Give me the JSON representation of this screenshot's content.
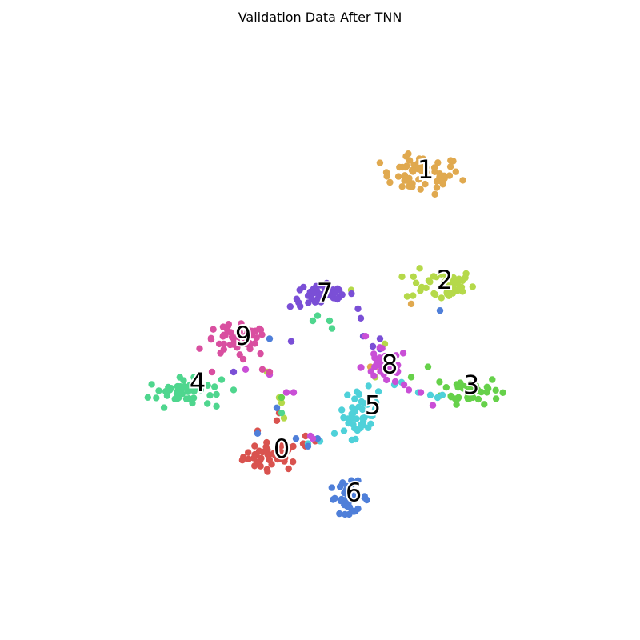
{
  "chart_data": {
    "type": "scatter",
    "title": "Validation Data After TNN",
    "xlabel": "",
    "ylabel": "",
    "axes_visible": false,
    "grid": false,
    "legend": "none",
    "xlim": [
      0,
      100
    ],
    "ylim": [
      0,
      100
    ],
    "clusters": [
      {
        "label": "0",
        "color": "#d9534f",
        "label_x": 42.0,
        "label_y": 27.5,
        "cx": 40.0,
        "cy": 26.0,
        "sx": 4.0,
        "sy": 1.8,
        "n": 42,
        "stray": [
          [
            37.0,
            31.0
          ],
          [
            41.5,
            34.5
          ],
          [
            41.0,
            33.0
          ],
          [
            47.0,
            28.0
          ],
          [
            49.0,
            29.0
          ],
          [
            46.5,
            28.5
          ],
          [
            47.0,
            30.0
          ]
        ]
      },
      {
        "label": "1",
        "color": "#e0a94f",
        "label_x": 72.0,
        "label_y": 82.0,
        "cx": 71.0,
        "cy": 81.0,
        "sx": 5.5,
        "sy": 2.5,
        "n": 55,
        "stray": [
          [
            60.5,
            43.5
          ],
          [
            61.5,
            43.5
          ],
          [
            69.0,
            55.8
          ]
        ]
      },
      {
        "label": "2",
        "color": "#b5d94a",
        "label_x": 76.0,
        "label_y": 60.5,
        "cx": 75.0,
        "cy": 59.5,
        "sx": 4.8,
        "sy": 2.0,
        "n": 44,
        "stray": [
          [
            56.5,
            58.5
          ],
          [
            63.5,
            48.0
          ],
          [
            61.5,
            41.5
          ],
          [
            41.5,
            37.5
          ],
          [
            42.0,
            36.5
          ],
          [
            42.5,
            33.5
          ],
          [
            39.0,
            42.5
          ]
        ]
      },
      {
        "label": "3",
        "color": "#66d14a",
        "label_x": 81.5,
        "label_y": 40.0,
        "cx": 81.5,
        "cy": 39.0,
        "sx": 4.0,
        "sy": 1.8,
        "n": 46,
        "stray": [
          [
            72.5,
            43.5
          ],
          [
            69.0,
            41.5
          ],
          [
            42.0,
            37.5
          ]
        ]
      },
      {
        "label": "4",
        "color": "#4fd68e",
        "label_x": 24.5,
        "label_y": 40.5,
        "cx": 21.0,
        "cy": 38.5,
        "sx": 4.5,
        "sy": 1.8,
        "n": 48,
        "stray": [
          [
            32.0,
            39.0
          ],
          [
            29.5,
            41.0
          ],
          [
            48.5,
            52.5
          ],
          [
            49.5,
            53.5
          ],
          [
            52.0,
            52.5
          ],
          [
            52.5,
            51.0
          ],
          [
            42.0,
            34.5
          ]
        ]
      },
      {
        "label": "5",
        "color": "#4fd1d9",
        "label_x": 61.0,
        "label_y": 36.0,
        "cx": 58.5,
        "cy": 34.5,
        "sx": 2.4,
        "sy": 3.2,
        "n": 40,
        "stray": [
          [
            53.0,
            30.5
          ],
          [
            55.0,
            31.0
          ],
          [
            50.0,
            29.0
          ],
          [
            47.5,
            28.5
          ],
          [
            65.5,
            40.0
          ],
          [
            67.0,
            40.5
          ],
          [
            70.5,
            38.5
          ],
          [
            73.0,
            38.0
          ],
          [
            74.5,
            37.5
          ],
          [
            75.5,
            38.0
          ]
        ]
      },
      {
        "label": "6",
        "color": "#4f7fd9",
        "label_x": 57.0,
        "label_y": 19.0,
        "cx": 56.0,
        "cy": 18.0,
        "sx": 2.7,
        "sy": 2.0,
        "n": 38,
        "stray": [
          [
            37.0,
            30.5
          ],
          [
            41.0,
            35.5
          ],
          [
            45.0,
            29.5
          ],
          [
            47.5,
            28.0
          ],
          [
            49.5,
            29.5
          ],
          [
            75.0,
            54.5
          ],
          [
            39.5,
            49.0
          ]
        ]
      },
      {
        "label": "7",
        "color": "#7a4fd6",
        "label_x": 51.0,
        "label_y": 58.0,
        "cx": 50.5,
        "cy": 57.5,
        "sx": 4.5,
        "sy": 1.6,
        "n": 44,
        "stray": [
          [
            58.5,
            53.0
          ],
          [
            59.0,
            49.5
          ],
          [
            61.0,
            47.5
          ],
          [
            62.5,
            49.0
          ],
          [
            62.5,
            47.0
          ],
          [
            32.0,
            42.5
          ],
          [
            44.0,
            48.5
          ]
        ]
      },
      {
        "label": "8",
        "color": "#c94fd6",
        "label_x": 64.5,
        "label_y": 44.0,
        "cx": 63.5,
        "cy": 43.5,
        "sx": 3.2,
        "sy": 2.3,
        "n": 36,
        "stray": [
          [
            59.5,
            49.5
          ],
          [
            67.5,
            40.0
          ],
          [
            68.5,
            39.0
          ],
          [
            71.0,
            38.5
          ],
          [
            73.5,
            36.0
          ],
          [
            43.0,
            38.5
          ],
          [
            44.5,
            38.5
          ],
          [
            48.0,
            30.0
          ],
          [
            48.5,
            29.5
          ],
          [
            34.5,
            43.0
          ],
          [
            39.5,
            42.0
          ]
        ]
      },
      {
        "label": "9",
        "color": "#d94fa0",
        "label_x": 34.0,
        "label_y": 49.5,
        "cx": 32.5,
        "cy": 48.5,
        "sx": 4.6,
        "sy": 2.1,
        "n": 46,
        "stray": [
          [
            27.5,
            42.5
          ],
          [
            38.0,
            43.0
          ],
          [
            39.5,
            42.5
          ],
          [
            34.0,
            45.0
          ]
        ]
      }
    ]
  }
}
